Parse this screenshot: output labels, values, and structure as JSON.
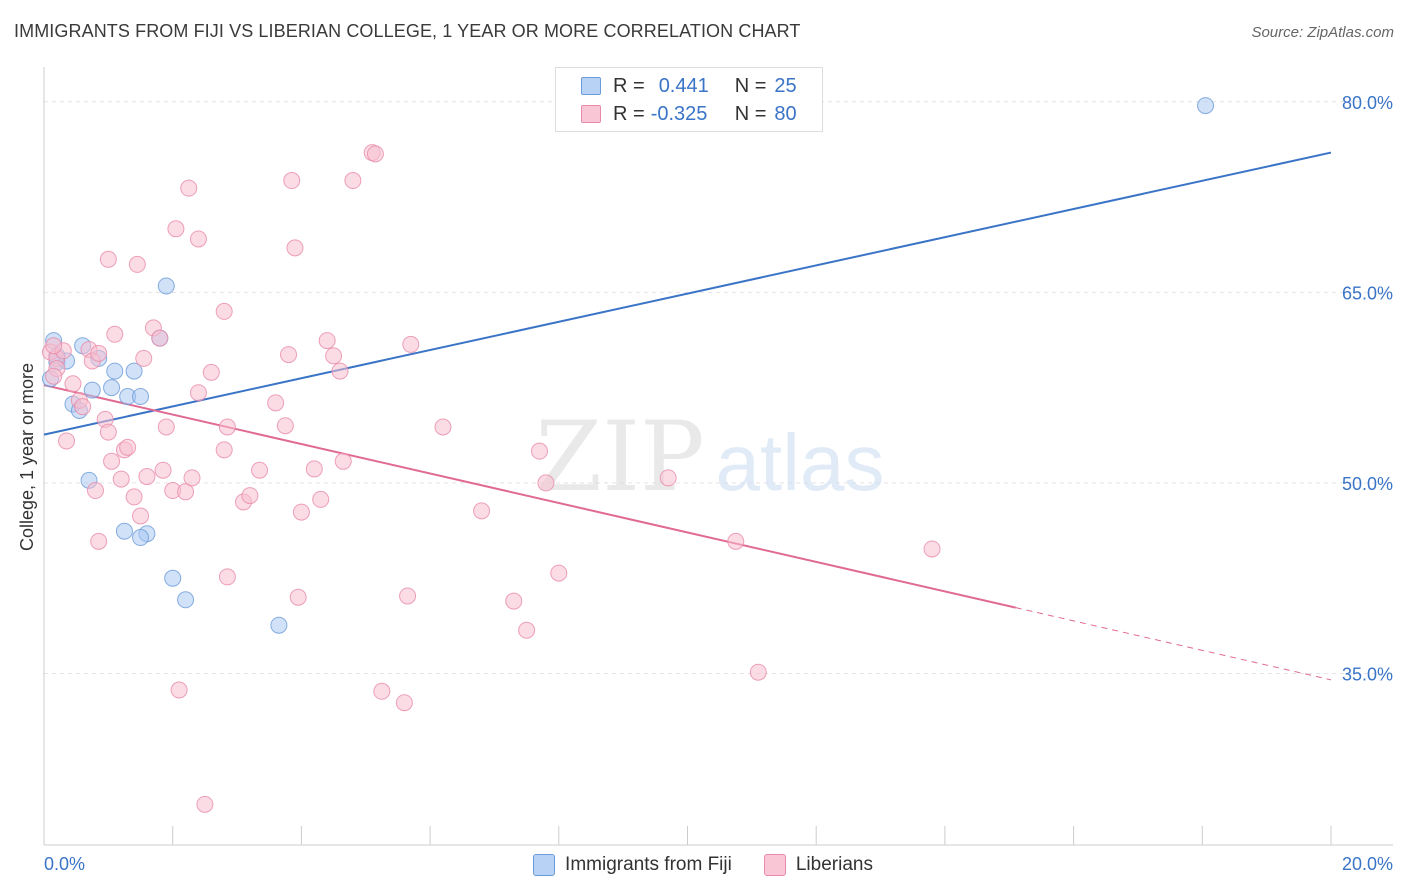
{
  "title": "IMMIGRANTS FROM FIJI VS LIBERIAN COLLEGE, 1 YEAR OR MORE CORRELATION CHART",
  "source": "Source: ZipAtlas.com",
  "watermark": {
    "zip": "ZIP",
    "atlas": "atlas"
  },
  "legend": {
    "r_label": "R =",
    "n_label": "N =",
    "rows": [
      {
        "r": "0.441",
        "n": "25",
        "fill": "#a9c8f2",
        "stroke": "#6b9bd8"
      },
      {
        "r": "-0.325",
        "n": "80",
        "fill": "#f7bfd0",
        "stroke": "#e88aaa"
      }
    ]
  },
  "chart_data": {
    "type": "scatter",
    "title": "IMMIGRANTS FROM FIJI VS LIBERIAN COLLEGE, 1 YEAR OR MORE CORRELATION CHART",
    "xlabel": "",
    "ylabel": "College, 1 year or more",
    "xlim": [
      0,
      20
    ],
    "ylim": [
      21.5,
      82.5
    ],
    "x_tick_labels": [
      {
        "value": 0,
        "label": "0.0%"
      },
      {
        "value": 20,
        "label": "20.0%"
      }
    ],
    "y_tick_labels": [
      {
        "value": 35,
        "label": "35.0%"
      },
      {
        "value": 50,
        "label": "50.0%"
      },
      {
        "value": 65,
        "label": "65.0%"
      },
      {
        "value": 80,
        "label": "80.0%"
      }
    ],
    "x_minor_ticks": [
      0,
      2,
      4,
      6,
      8,
      10,
      12,
      14,
      16,
      18,
      20
    ],
    "grid": true,
    "series": [
      {
        "name": "Immigrants from Fiji",
        "color": "#3a74c7",
        "fill": "#a9c8f2",
        "points": [
          {
            "x": 0.15,
            "y": 61.2
          },
          {
            "x": 0.2,
            "y": 59.5
          },
          {
            "x": 0.1,
            "y": 58.2
          },
          {
            "x": 0.35,
            "y": 59.6
          },
          {
            "x": 0.6,
            "y": 60.8
          },
          {
            "x": 0.85,
            "y": 59.8
          },
          {
            "x": 1.1,
            "y": 58.8
          },
          {
            "x": 1.4,
            "y": 58.8
          },
          {
            "x": 0.75,
            "y": 57.3
          },
          {
            "x": 1.05,
            "y": 57.5
          },
          {
            "x": 1.3,
            "y": 56.8
          },
          {
            "x": 1.5,
            "y": 56.8
          },
          {
            "x": 0.45,
            "y": 56.2
          },
          {
            "x": 0.55,
            "y": 55.7
          },
          {
            "x": 1.8,
            "y": 61.4
          },
          {
            "x": 1.9,
            "y": 65.5
          },
          {
            "x": 0.7,
            "y": 50.2
          },
          {
            "x": 1.25,
            "y": 46.2
          },
          {
            "x": 1.6,
            "y": 46.0
          },
          {
            "x": 2.0,
            "y": 42.5
          },
          {
            "x": 2.2,
            "y": 40.8
          },
          {
            "x": 3.65,
            "y": 38.8
          },
          {
            "x": 18.05,
            "y": 79.7
          },
          {
            "x": 0.2,
            "y": 60.0
          },
          {
            "x": 1.5,
            "y": 45.7
          }
        ],
        "trend": {
          "x0": 0,
          "y0": 53.8,
          "x1": 20,
          "y1": 76.0,
          "dashed_from": null
        }
      },
      {
        "name": "Liberians",
        "color": "#e06a93",
        "fill": "#f7bfd0",
        "points": [
          {
            "x": 0.1,
            "y": 60.3
          },
          {
            "x": 0.2,
            "y": 59.8
          },
          {
            "x": 0.3,
            "y": 60.4
          },
          {
            "x": 0.2,
            "y": 59.0
          },
          {
            "x": 0.15,
            "y": 58.4
          },
          {
            "x": 0.45,
            "y": 57.8
          },
          {
            "x": 0.55,
            "y": 56.5
          },
          {
            "x": 0.6,
            "y": 56.0
          },
          {
            "x": 0.7,
            "y": 60.5
          },
          {
            "x": 0.75,
            "y": 59.6
          },
          {
            "x": 0.85,
            "y": 60.2
          },
          {
            "x": 1.1,
            "y": 61.7
          },
          {
            "x": 1.55,
            "y": 59.8
          },
          {
            "x": 1.7,
            "y": 62.2
          },
          {
            "x": 1.8,
            "y": 61.4
          },
          {
            "x": 0.95,
            "y": 55.0
          },
          {
            "x": 1.0,
            "y": 54.0
          },
          {
            "x": 0.35,
            "y": 53.3
          },
          {
            "x": 1.25,
            "y": 52.6
          },
          {
            "x": 1.3,
            "y": 52.8
          },
          {
            "x": 1.05,
            "y": 51.7
          },
          {
            "x": 1.2,
            "y": 50.3
          },
          {
            "x": 1.6,
            "y": 50.5
          },
          {
            "x": 1.85,
            "y": 51.0
          },
          {
            "x": 0.8,
            "y": 49.4
          },
          {
            "x": 1.4,
            "y": 48.9
          },
          {
            "x": 2.0,
            "y": 49.4
          },
          {
            "x": 2.2,
            "y": 49.3
          },
          {
            "x": 2.3,
            "y": 50.4
          },
          {
            "x": 1.5,
            "y": 47.4
          },
          {
            "x": 0.85,
            "y": 45.4
          },
          {
            "x": 1.9,
            "y": 54.4
          },
          {
            "x": 2.4,
            "y": 57.1
          },
          {
            "x": 2.6,
            "y": 58.7
          },
          {
            "x": 2.8,
            "y": 52.6
          },
          {
            "x": 2.85,
            "y": 54.4
          },
          {
            "x": 3.1,
            "y": 48.5
          },
          {
            "x": 3.2,
            "y": 49.0
          },
          {
            "x": 3.35,
            "y": 51.0
          },
          {
            "x": 3.6,
            "y": 56.3
          },
          {
            "x": 3.75,
            "y": 54.5
          },
          {
            "x": 3.8,
            "y": 60.1
          },
          {
            "x": 4.0,
            "y": 47.7
          },
          {
            "x": 4.2,
            "y": 51.1
          },
          {
            "x": 4.3,
            "y": 48.7
          },
          {
            "x": 4.4,
            "y": 61.2
          },
          {
            "x": 4.5,
            "y": 60.0
          },
          {
            "x": 4.6,
            "y": 58.8
          },
          {
            "x": 4.65,
            "y": 51.7
          },
          {
            "x": 2.05,
            "y": 70.0
          },
          {
            "x": 2.25,
            "y": 73.2
          },
          {
            "x": 2.4,
            "y": 69.2
          },
          {
            "x": 2.8,
            "y": 63.5
          },
          {
            "x": 1.0,
            "y": 67.6
          },
          {
            "x": 1.45,
            "y": 67.2
          },
          {
            "x": 3.85,
            "y": 73.8
          },
          {
            "x": 3.9,
            "y": 68.5
          },
          {
            "x": 4.8,
            "y": 73.8
          },
          {
            "x": 5.1,
            "y": 76.0
          },
          {
            "x": 5.15,
            "y": 75.9
          },
          {
            "x": 5.7,
            "y": 60.9
          },
          {
            "x": 6.2,
            "y": 54.4
          },
          {
            "x": 6.8,
            "y": 47.8
          },
          {
            "x": 7.7,
            "y": 52.5
          },
          {
            "x": 7.8,
            "y": 50.0
          },
          {
            "x": 8.0,
            "y": 42.9
          },
          {
            "x": 9.7,
            "y": 50.4
          },
          {
            "x": 10.75,
            "y": 45.4
          },
          {
            "x": 11.1,
            "y": 35.1
          },
          {
            "x": 13.8,
            "y": 44.8
          },
          {
            "x": 2.85,
            "y": 42.6
          },
          {
            "x": 3.95,
            "y": 41.0
          },
          {
            "x": 5.65,
            "y": 41.1
          },
          {
            "x": 7.3,
            "y": 40.7
          },
          {
            "x": 7.5,
            "y": 38.4
          },
          {
            "x": 2.1,
            "y": 33.7
          },
          {
            "x": 5.25,
            "y": 33.6
          },
          {
            "x": 5.6,
            "y": 32.7
          },
          {
            "x": 2.5,
            "y": 24.7
          },
          {
            "x": 0.15,
            "y": 60.8
          }
        ],
        "trend": {
          "x0": 0,
          "y0": 57.7,
          "x1": 20,
          "y1": 34.5,
          "dashed_from": 15.1
        }
      }
    ]
  },
  "bottom_legend": [
    {
      "label": "Immigrants from Fiji",
      "fill": "#b7d2f5",
      "stroke": "#6b9bd8"
    },
    {
      "label": "Liberians",
      "fill": "#f9c6d6",
      "stroke": "#e88aaa"
    }
  ],
  "colors": {
    "axis_label": "#3a74c7",
    "grid": "#e4e4e4",
    "axis": "#cccccc"
  }
}
